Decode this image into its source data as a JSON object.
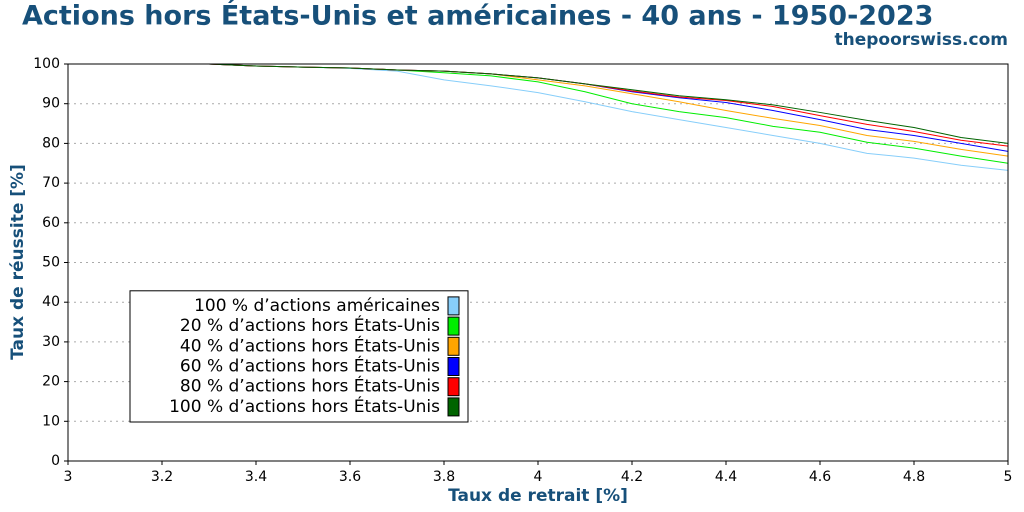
{
  "chart_data": {
    "type": "line",
    "title": "Actions hors États-Unis et américaines - 40 ans - 1950-2023",
    "subtitle": "thepoorswiss.com",
    "x_label": "Taux de retrait [%]",
    "y_label": "Taux de réussite [%]",
    "x": [
      3,
      3.1,
      3.2,
      3.3,
      3.4,
      3.5,
      3.6,
      3.7,
      3.8,
      3.9,
      4,
      4.1,
      4.2,
      4.3,
      4.4,
      4.5,
      4.6,
      4.7,
      4.8,
      4.9,
      5
    ],
    "series": [
      {
        "name": "100 % d’actions américaines",
        "color": "#87cefa",
        "values": [
          100,
          100,
          100,
          100,
          99.5,
          99.2,
          98.9,
          98.2,
          96,
          94.5,
          92.8,
          90.5,
          88,
          86,
          84,
          82,
          80,
          77.5,
          76.3,
          74.5,
          73.2
        ]
      },
      {
        "name": "20 % d’actions hors États-Unis",
        "color": "#00ee00",
        "values": [
          100,
          100,
          100,
          100,
          99.5,
          99.2,
          99,
          98.5,
          97.8,
          97,
          95.5,
          93,
          90,
          88,
          86.5,
          84.3,
          82.8,
          80.3,
          78.8,
          76.8,
          75
        ]
      },
      {
        "name": "40 % d’actions hors États-Unis",
        "color": "#ffa500",
        "values": [
          100,
          100,
          100,
          100,
          99.5,
          99.2,
          99,
          98.5,
          98.2,
          97.5,
          96,
          94.5,
          92.5,
          90.5,
          88.3,
          86.3,
          84.5,
          82,
          80.5,
          78.5,
          76.8
        ]
      },
      {
        "name": "60 % d’actions hors États-Unis",
        "color": "#0000ff",
        "values": [
          100,
          100,
          100,
          100,
          99.5,
          99.2,
          99,
          98.5,
          98.2,
          97.5,
          96.5,
          95,
          93,
          91.5,
          90.3,
          88.3,
          86,
          83.5,
          82,
          80,
          78
        ]
      },
      {
        "name": "80 % d’actions hors États-Unis",
        "color": "#ff0000",
        "values": [
          100,
          100,
          100,
          100,
          99.5,
          99.2,
          99,
          98.5,
          98.2,
          97.5,
          96.5,
          95,
          93.2,
          91.7,
          90.8,
          89.3,
          87,
          84.8,
          83,
          80.8,
          79.3
        ]
      },
      {
        "name": "100 % d’actions hors États-Unis",
        "color": "#006400",
        "values": [
          100,
          100,
          100,
          100,
          99.5,
          99.2,
          99,
          98.5,
          98.2,
          97.5,
          96.5,
          95,
          93.5,
          92,
          91,
          89.7,
          87.8,
          85.8,
          84,
          81.5,
          80
        ]
      }
    ],
    "xlim": [
      3,
      5
    ],
    "xticks": [
      3,
      3.2,
      3.4,
      3.6,
      3.8,
      4,
      4.2,
      4.4,
      4.6,
      4.8,
      5
    ],
    "ylim": [
      0,
      100
    ],
    "yticks": [
      0,
      10,
      20,
      30,
      40,
      50,
      60,
      70,
      80,
      90,
      100
    ],
    "grid": true,
    "legend": "lower left"
  }
}
